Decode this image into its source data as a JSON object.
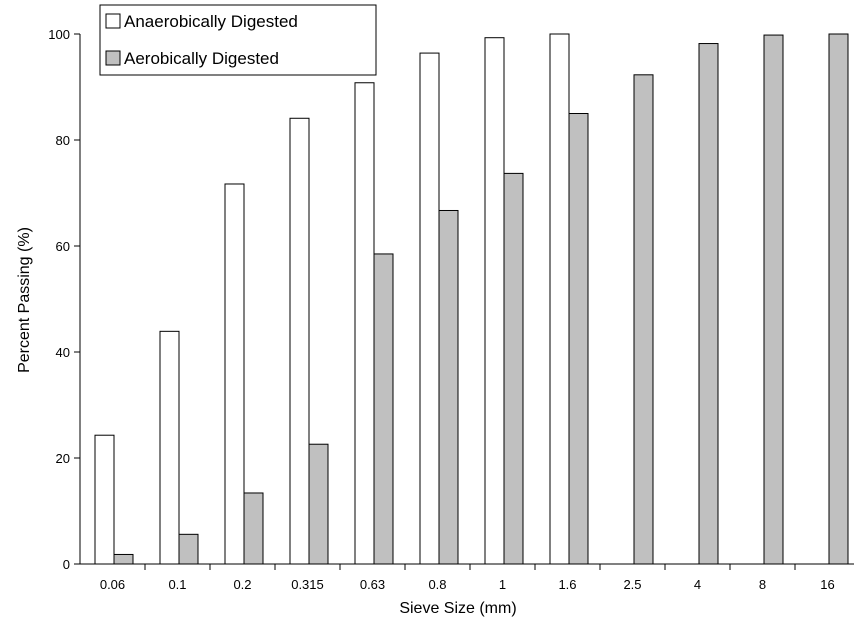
{
  "chart_data": {
    "type": "bar",
    "xlabel": "Sieve Size (mm)",
    "ylabel": "Percent Passing (%)",
    "ylim": [
      0,
      100
    ],
    "yticks": [
      0,
      20,
      40,
      60,
      80,
      100
    ],
    "grid": false,
    "legend_position": "top-left",
    "categories": [
      "0.06",
      "0.1",
      "0.2",
      "0.315",
      "0.63",
      "0.8",
      "1",
      "1.6",
      "2.5",
      "4",
      "8",
      "16"
    ],
    "series": [
      {
        "name": "Anaerobically Digested",
        "color": "#ffffff",
        "values": [
          24.3,
          43.9,
          71.7,
          84.1,
          90.8,
          96.4,
          99.3,
          100,
          null,
          null,
          null,
          null
        ]
      },
      {
        "name": "Aerobically Digested",
        "color": "#c0c0c0",
        "values": [
          1.8,
          5.6,
          13.4,
          22.6,
          58.5,
          66.7,
          73.7,
          85.0,
          92.3,
          98.2,
          99.8,
          100
        ]
      }
    ]
  }
}
